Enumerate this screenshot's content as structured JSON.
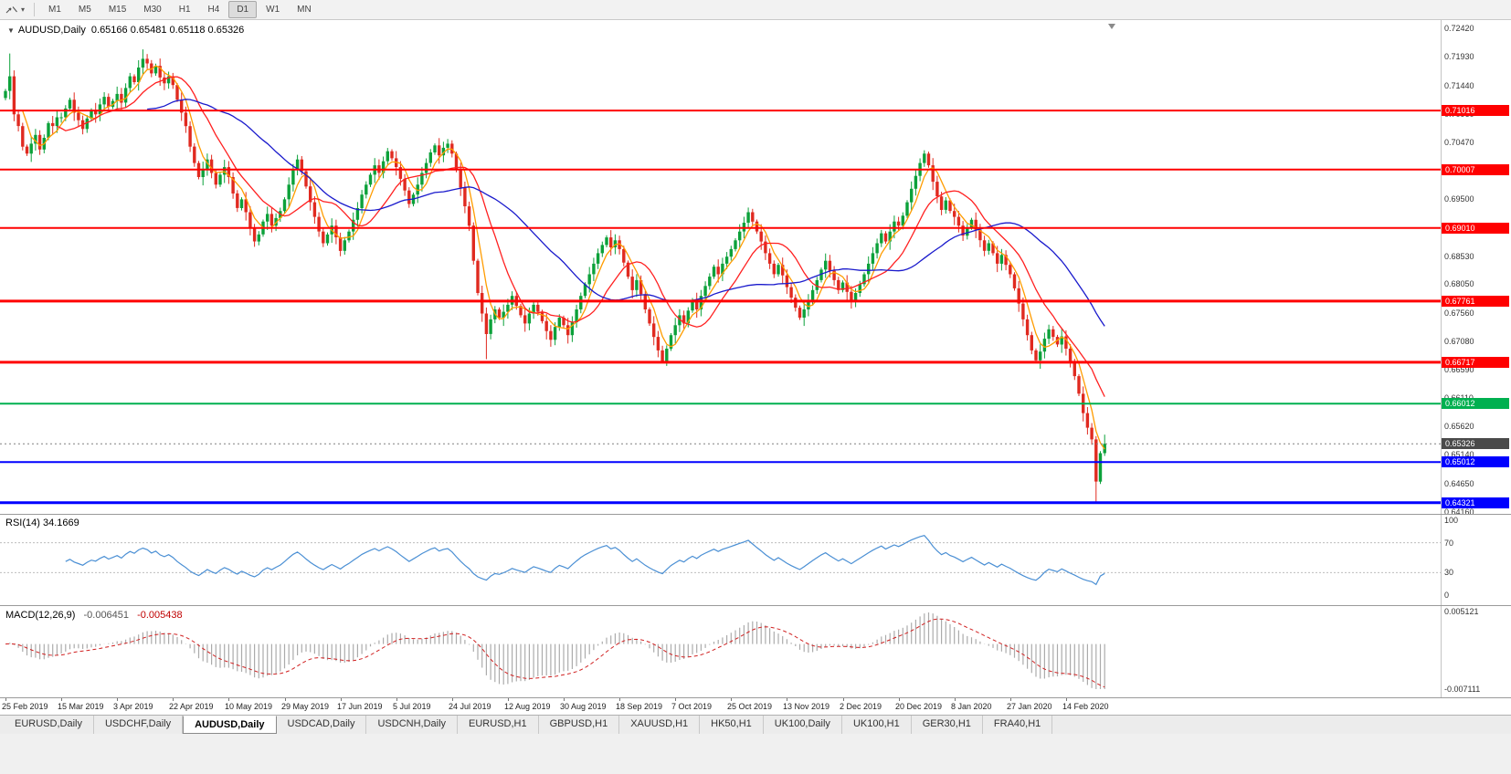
{
  "toolbar": {
    "timeframes": [
      "M1",
      "M5",
      "M15",
      "M30",
      "H1",
      "H4",
      "D1",
      "W1",
      "MN"
    ],
    "active_timeframe": "D1",
    "dropdown_glyph": "▾"
  },
  "chart_header": {
    "collapse_glyph": "▼",
    "symbol_period": "AUDUSD,Daily",
    "ohlc_text": "0.65166 0.65481 0.65118 0.65326"
  },
  "price_scale": {
    "labels": [
      "0.72420",
      "0.71930",
      "0.71440",
      "0.70960",
      "0.70470",
      "0.69980",
      "0.69500",
      "0.68530",
      "0.68050",
      "0.67560",
      "0.67080",
      "0.66590",
      "0.66110",
      "0.65620",
      "0.65140",
      "0.64650",
      "0.64160"
    ],
    "current": {
      "value": "0.65326",
      "badge_color": "#4a4a4a"
    }
  },
  "levels": [
    {
      "price": 0.71016,
      "label": "0.71016",
      "color": "#ff0000",
      "width": 2
    },
    {
      "price": 0.70007,
      "label": "0.70007",
      "color": "#ff0000",
      "width": 2
    },
    {
      "price": 0.6901,
      "label": "0.69010",
      "color": "#ff0000",
      "width": 2
    },
    {
      "price": 0.67761,
      "label": "0.67761",
      "color": "#ff0000",
      "width": 3
    },
    {
      "price": 0.66717,
      "label": "0.66717",
      "color": "#ff0000",
      "width": 3
    },
    {
      "price": 0.66012,
      "label": "0.66012",
      "color": "#00b050",
      "width": 2
    },
    {
      "price": 0.65012,
      "label": "0.65012",
      "color": "#0000ff",
      "width": 2
    },
    {
      "price": 0.64321,
      "label": "0.64321",
      "color": "#0000ff",
      "width": 3
    }
  ],
  "rsi": {
    "label": "RSI(14)",
    "value": "34.1669",
    "scale_labels": [
      "100",
      "70",
      "30",
      "0"
    ],
    "level_lines": [
      70,
      30
    ],
    "line_color": "#4a8fd4"
  },
  "macd": {
    "label": "MACD(12,26,9)",
    "main_value": "-0.006451",
    "signal_value": "-0.005438",
    "scale_top": "0.005121",
    "scale_bottom": "-0.007111",
    "histogram_color": "#ababab",
    "signal_color": "#d02020"
  },
  "time_axis": {
    "labels": [
      "25 Feb 2019",
      "15 Mar 2019",
      "3 Apr 2019",
      "22 Apr 2019",
      "10 May 2019",
      "29 May 2019",
      "17 Jun 2019",
      "5 Jul 2019",
      "24 Jul 2019",
      "12 Aug 2019",
      "30 Aug 2019",
      "18 Sep 2019",
      "7 Oct 2019",
      "25 Oct 2019",
      "13 Nov 2019",
      "2 Dec 2019",
      "20 Dec 2019",
      "8 Jan 2020",
      "27 Jan 2020",
      "14 Feb 2020"
    ],
    "bars_per_label": 13
  },
  "tab_bar": {
    "tabs": [
      "EURUSD,Daily",
      "USDCHF,Daily",
      "AUDUSD,Daily",
      "USDCAD,Daily",
      "USDCNH,Daily",
      "EURUSD,H1",
      "GBPUSD,H1",
      "XAUUSD,H1",
      "HK50,H1",
      "UK100,Daily",
      "UK100,H1",
      "GER30,H1",
      "FRA40,H1"
    ],
    "active_tab": "AUDUSD,Daily"
  },
  "chart_data": {
    "type": "candlestick",
    "symbol": "AUDUSD",
    "period": "Daily",
    "current_bar": {
      "open": 0.65166,
      "high": 0.65481,
      "low": 0.65118,
      "close": 0.65326
    },
    "y_min": 0.6416,
    "y_max": 0.7242,
    "up_color": "#0ca13a",
    "down_color": "#e02a20",
    "closes": [
      0.7135,
      0.716,
      0.7095,
      0.7075,
      0.704,
      0.7028,
      0.7045,
      0.706,
      0.7035,
      0.7055,
      0.708,
      0.7075,
      0.709,
      0.709,
      0.7105,
      0.712,
      0.7098,
      0.7085,
      0.707,
      0.7088,
      0.7102,
      0.7095,
      0.7112,
      0.7125,
      0.7108,
      0.7118,
      0.713,
      0.7115,
      0.714,
      0.716,
      0.715,
      0.7175,
      0.719,
      0.7182,
      0.7165,
      0.7178,
      0.7158,
      0.7148,
      0.716,
      0.7145,
      0.712,
      0.7098,
      0.7075,
      0.704,
      0.7012,
      0.6988,
      0.7002,
      0.7018,
      0.6995,
      0.6975,
      0.6992,
      0.7005,
      0.6988,
      0.696,
      0.6935,
      0.695,
      0.6928,
      0.69,
      0.6878,
      0.689,
      0.6912,
      0.6925,
      0.6905,
      0.6918,
      0.693,
      0.695,
      0.6975,
      0.7,
      0.7018,
      0.6998,
      0.6972,
      0.6945,
      0.692,
      0.6895,
      0.6875,
      0.689,
      0.6905,
      0.6885,
      0.6862,
      0.688,
      0.6895,
      0.6915,
      0.6935,
      0.6958,
      0.6975,
      0.6992,
      0.7008,
      0.6995,
      0.7015,
      0.7032,
      0.702,
      0.7005,
      0.6985,
      0.6965,
      0.6942,
      0.6958,
      0.6975,
      0.6995,
      0.7012,
      0.703,
      0.7042,
      0.7025,
      0.7038,
      0.7045,
      0.7028,
      0.7,
      0.697,
      0.6938,
      0.6905,
      0.6845,
      0.679,
      0.6755,
      0.672,
      0.6745,
      0.6762,
      0.6748,
      0.6758,
      0.677,
      0.6785,
      0.6768,
      0.6752,
      0.6738,
      0.6755,
      0.677,
      0.6758,
      0.6742,
      0.6725,
      0.671,
      0.6732,
      0.6748,
      0.6735,
      0.6718,
      0.674,
      0.6762,
      0.6785,
      0.6805,
      0.6822,
      0.684,
      0.6858,
      0.6872,
      0.6885,
      0.6868,
      0.688,
      0.6865,
      0.6842,
      0.6818,
      0.6795,
      0.6812,
      0.6788,
      0.6762,
      0.6738,
      0.6715,
      0.6692,
      0.6672,
      0.6695,
      0.6718,
      0.6735,
      0.6752,
      0.6738,
      0.676,
      0.6778,
      0.6762,
      0.6785,
      0.6802,
      0.6818,
      0.6835,
      0.6822,
      0.684,
      0.6852,
      0.6865,
      0.688,
      0.6895,
      0.691,
      0.6928,
      0.6912,
      0.6895,
      0.6878,
      0.6858,
      0.684,
      0.6822,
      0.6838,
      0.682,
      0.68,
      0.6782,
      0.6765,
      0.6748,
      0.6762,
      0.6778,
      0.6795,
      0.6812,
      0.683,
      0.6845,
      0.6828,
      0.6812,
      0.6795,
      0.6808,
      0.6792,
      0.6775,
      0.679,
      0.6805,
      0.6822,
      0.684,
      0.6858,
      0.6875,
      0.6892,
      0.6878,
      0.6895,
      0.6912,
      0.6905,
      0.6922,
      0.6945,
      0.6968,
      0.699,
      0.7012,
      0.7028,
      0.7008,
      0.698,
      0.6955,
      0.6932,
      0.6948,
      0.693,
      0.692,
      0.6905,
      0.6888,
      0.6902,
      0.6915,
      0.6898,
      0.688,
      0.6862,
      0.6875,
      0.6858,
      0.684,
      0.6855,
      0.6838,
      0.6822,
      0.6798,
      0.6772,
      0.6745,
      0.6718,
      0.6692,
      0.6675,
      0.669,
      0.6712,
      0.6728,
      0.6715,
      0.6702,
      0.6716,
      0.6695,
      0.6672,
      0.6648,
      0.6618,
      0.6585,
      0.656,
      0.654,
      0.6468,
      0.65166,
      0.65326
    ],
    "high_overrides": {
      "1": 0.7199,
      "32": 0.7206,
      "256": 0.65481
    },
    "low_overrides": {
      "112": 0.6677,
      "153": 0.667,
      "254": 0.6434,
      "256": 0.65118
    },
    "moving_averages": [
      {
        "period": 5,
        "color": "#ff9c00"
      },
      {
        "period": 13,
        "color": "#ff2020"
      },
      {
        "period": 34,
        "color": "#1a1acc"
      }
    ],
    "indicators": [
      {
        "name": "RSI",
        "params": [
          14
        ],
        "last_value": 34.1669
      },
      {
        "name": "MACD",
        "params": [
          12,
          26,
          9
        ],
        "last_main": -0.006451,
        "last_signal": -0.005438
      }
    ]
  }
}
